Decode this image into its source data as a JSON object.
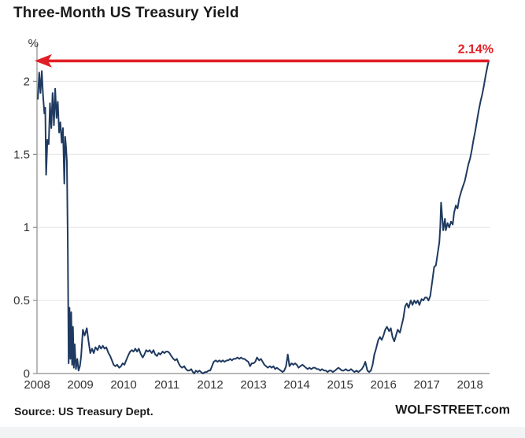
{
  "header": {
    "title": "Three-Month US Treasury Yield"
  },
  "footer": {
    "source": "Source: US Treasury Dept.",
    "brand": "WOLFSTREET.com"
  },
  "chart_data": {
    "type": "line",
    "title": "Three-Month US Treasury Yield",
    "xlabel": "",
    "ylabel": "%",
    "xlim": [
      2008,
      2018.45
    ],
    "ylim": [
      0,
      2.18
    ],
    "grid": "horizontal",
    "legend": "none",
    "x_ticks": [
      2008,
      2009,
      2010,
      2011,
      2012,
      2013,
      2014,
      2015,
      2016,
      2017,
      2018
    ],
    "y_ticks": [
      {
        "v": 0,
        "label": "0"
      },
      {
        "v": 0.5,
        "label": "0.5"
      },
      {
        "v": 1,
        "label": "1"
      },
      {
        "v": 1.5,
        "label": "1.5"
      },
      {
        "v": 2,
        "label": "2"
      }
    ],
    "colors": {
      "line": "#1f3a60",
      "annotation": "#e11e25",
      "grid": "#e4e4e4",
      "axis": "#8c8c8c",
      "tick_text": "#333333"
    },
    "annotation": {
      "text": "2.14%",
      "value": 2.14,
      "style": "horizontal-arrow-to-y-axis"
    },
    "series": [
      {
        "name": "3-Month US Treasury Yield (%)",
        "points": [
          [
            2008.02,
            1.88
          ],
          [
            2008.05,
            2.06
          ],
          [
            2008.08,
            1.92
          ],
          [
            2008.11,
            2.07
          ],
          [
            2008.14,
            1.9
          ],
          [
            2008.17,
            1.78
          ],
          [
            2008.19,
            1.82
          ],
          [
            2008.21,
            1.36
          ],
          [
            2008.24,
            1.6
          ],
          [
            2008.27,
            1.57
          ],
          [
            2008.3,
            1.85
          ],
          [
            2008.33,
            1.68
          ],
          [
            2008.36,
            1.92
          ],
          [
            2008.39,
            1.7
          ],
          [
            2008.42,
            1.95
          ],
          [
            2008.45,
            1.75
          ],
          [
            2008.48,
            1.86
          ],
          [
            2008.51,
            1.65
          ],
          [
            2008.54,
            1.72
          ],
          [
            2008.57,
            1.58
          ],
          [
            2008.6,
            1.68
          ],
          [
            2008.63,
            1.3
          ],
          [
            2008.65,
            1.62
          ],
          [
            2008.67,
            1.55
          ],
          [
            2008.69,
            1.45
          ],
          [
            2008.71,
            0.9
          ],
          [
            2008.73,
            0.07
          ],
          [
            2008.75,
            0.45
          ],
          [
            2008.77,
            0.1
          ],
          [
            2008.79,
            0.42
          ],
          [
            2008.81,
            0.06
          ],
          [
            2008.83,
            0.32
          ],
          [
            2008.85,
            0.04
          ],
          [
            2008.87,
            0.2
          ],
          [
            2008.9,
            0.03
          ],
          [
            2008.93,
            0.1
          ],
          [
            2008.96,
            0.02
          ],
          [
            2008.99,
            0.05
          ],
          [
            2009.02,
            0.12
          ],
          [
            2009.06,
            0.3
          ],
          [
            2009.1,
            0.26
          ],
          [
            2009.15,
            0.31
          ],
          [
            2009.19,
            0.22
          ],
          [
            2009.23,
            0.14
          ],
          [
            2009.27,
            0.17
          ],
          [
            2009.31,
            0.14
          ],
          [
            2009.35,
            0.18
          ],
          [
            2009.4,
            0.16
          ],
          [
            2009.44,
            0.19
          ],
          [
            2009.48,
            0.17
          ],
          [
            2009.52,
            0.19
          ],
          [
            2009.56,
            0.17
          ],
          [
            2009.6,
            0.18
          ],
          [
            2009.65,
            0.14
          ],
          [
            2009.69,
            0.12
          ],
          [
            2009.73,
            0.09
          ],
          [
            2009.77,
            0.06
          ],
          [
            2009.81,
            0.05
          ],
          [
            2009.85,
            0.06
          ],
          [
            2009.9,
            0.04
          ],
          [
            2009.94,
            0.05
          ],
          [
            2009.98,
            0.07
          ],
          [
            2010.02,
            0.06
          ],
          [
            2010.06,
            0.09
          ],
          [
            2010.1,
            0.12
          ],
          [
            2010.15,
            0.15
          ],
          [
            2010.19,
            0.16
          ],
          [
            2010.23,
            0.15
          ],
          [
            2010.27,
            0.17
          ],
          [
            2010.31,
            0.15
          ],
          [
            2010.35,
            0.17
          ],
          [
            2010.4,
            0.13
          ],
          [
            2010.44,
            0.11
          ],
          [
            2010.48,
            0.13
          ],
          [
            2010.52,
            0.16
          ],
          [
            2010.56,
            0.15
          ],
          [
            2010.6,
            0.16
          ],
          [
            2010.65,
            0.14
          ],
          [
            2010.69,
            0.16
          ],
          [
            2010.73,
            0.13
          ],
          [
            2010.77,
            0.12
          ],
          [
            2010.81,
            0.14
          ],
          [
            2010.85,
            0.13
          ],
          [
            2010.9,
            0.15
          ],
          [
            2010.94,
            0.14
          ],
          [
            2010.98,
            0.15
          ],
          [
            2011.02,
            0.15
          ],
          [
            2011.06,
            0.14
          ],
          [
            2011.1,
            0.12
          ],
          [
            2011.15,
            0.1
          ],
          [
            2011.19,
            0.09
          ],
          [
            2011.23,
            0.1
          ],
          [
            2011.27,
            0.07
          ],
          [
            2011.31,
            0.05
          ],
          [
            2011.35,
            0.04
          ],
          [
            2011.4,
            0.05
          ],
          [
            2011.44,
            0.03
          ],
          [
            2011.48,
            0.02
          ],
          [
            2011.52,
            0.02
          ],
          [
            2011.56,
            0.03
          ],
          [
            2011.6,
            0.01
          ],
          [
            2011.63,
            0.0
          ],
          [
            2011.67,
            0.02
          ],
          [
            2011.71,
            0.01
          ],
          [
            2011.75,
            0.02
          ],
          [
            2011.79,
            0.01
          ],
          [
            2011.83,
            0.0
          ],
          [
            2011.88,
            0.01
          ],
          [
            2011.92,
            0.01
          ],
          [
            2011.96,
            0.02
          ],
          [
            2012.0,
            0.02
          ],
          [
            2012.04,
            0.05
          ],
          [
            2012.08,
            0.08
          ],
          [
            2012.13,
            0.09
          ],
          [
            2012.17,
            0.08
          ],
          [
            2012.21,
            0.09
          ],
          [
            2012.25,
            0.08
          ],
          [
            2012.29,
            0.09
          ],
          [
            2012.33,
            0.08
          ],
          [
            2012.38,
            0.09
          ],
          [
            2012.42,
            0.09
          ],
          [
            2012.46,
            0.1
          ],
          [
            2012.5,
            0.09
          ],
          [
            2012.54,
            0.1
          ],
          [
            2012.58,
            0.1
          ],
          [
            2012.63,
            0.11
          ],
          [
            2012.67,
            0.1
          ],
          [
            2012.71,
            0.11
          ],
          [
            2012.75,
            0.1
          ],
          [
            2012.79,
            0.1
          ],
          [
            2012.83,
            0.09
          ],
          [
            2012.88,
            0.08
          ],
          [
            2012.92,
            0.05
          ],
          [
            2012.96,
            0.07
          ],
          [
            2013.0,
            0.07
          ],
          [
            2013.04,
            0.08
          ],
          [
            2013.08,
            0.11
          ],
          [
            2013.13,
            0.09
          ],
          [
            2013.17,
            0.1
          ],
          [
            2013.21,
            0.08
          ],
          [
            2013.25,
            0.06
          ],
          [
            2013.29,
            0.05
          ],
          [
            2013.33,
            0.04
          ],
          [
            2013.38,
            0.05
          ],
          [
            2013.42,
            0.04
          ],
          [
            2013.46,
            0.05
          ],
          [
            2013.5,
            0.03
          ],
          [
            2013.54,
            0.04
          ],
          [
            2013.58,
            0.03
          ],
          [
            2013.63,
            0.02
          ],
          [
            2013.67,
            0.01
          ],
          [
            2013.71,
            0.02
          ],
          [
            2013.75,
            0.05
          ],
          [
            2013.79,
            0.13
          ],
          [
            2013.83,
            0.05
          ],
          [
            2013.88,
            0.07
          ],
          [
            2013.92,
            0.06
          ],
          [
            2013.96,
            0.07
          ],
          [
            2014.0,
            0.06
          ],
          [
            2014.04,
            0.04
          ],
          [
            2014.08,
            0.05
          ],
          [
            2014.13,
            0.06
          ],
          [
            2014.17,
            0.05
          ],
          [
            2014.21,
            0.04
          ],
          [
            2014.25,
            0.03
          ],
          [
            2014.29,
            0.04
          ],
          [
            2014.33,
            0.03
          ],
          [
            2014.38,
            0.04
          ],
          [
            2014.42,
            0.04
          ],
          [
            2014.46,
            0.03
          ],
          [
            2014.5,
            0.03
          ],
          [
            2014.54,
            0.02
          ],
          [
            2014.58,
            0.03
          ],
          [
            2014.63,
            0.02
          ],
          [
            2014.67,
            0.02
          ],
          [
            2014.71,
            0.01
          ],
          [
            2014.75,
            0.02
          ],
          [
            2014.79,
            0.02
          ],
          [
            2014.83,
            0.01
          ],
          [
            2014.88,
            0.02
          ],
          [
            2014.92,
            0.03
          ],
          [
            2014.96,
            0.04
          ],
          [
            2015.0,
            0.03
          ],
          [
            2015.04,
            0.02
          ],
          [
            2015.08,
            0.02
          ],
          [
            2015.13,
            0.03
          ],
          [
            2015.17,
            0.02
          ],
          [
            2015.21,
            0.02
          ],
          [
            2015.25,
            0.03
          ],
          [
            2015.29,
            0.02
          ],
          [
            2015.33,
            0.01
          ],
          [
            2015.38,
            0.02
          ],
          [
            2015.42,
            0.01
          ],
          [
            2015.46,
            0.02
          ],
          [
            2015.5,
            0.03
          ],
          [
            2015.54,
            0.05
          ],
          [
            2015.58,
            0.08
          ],
          [
            2015.63,
            0.02
          ],
          [
            2015.67,
            0.01
          ],
          [
            2015.71,
            0.02
          ],
          [
            2015.75,
            0.06
          ],
          [
            2015.79,
            0.13
          ],
          [
            2015.83,
            0.17
          ],
          [
            2015.88,
            0.23
          ],
          [
            2015.92,
            0.25
          ],
          [
            2015.96,
            0.23
          ],
          [
            2016.0,
            0.26
          ],
          [
            2016.04,
            0.3
          ],
          [
            2016.08,
            0.32
          ],
          [
            2016.13,
            0.29
          ],
          [
            2016.17,
            0.31
          ],
          [
            2016.21,
            0.25
          ],
          [
            2016.25,
            0.22
          ],
          [
            2016.29,
            0.26
          ],
          [
            2016.33,
            0.3
          ],
          [
            2016.38,
            0.28
          ],
          [
            2016.42,
            0.33
          ],
          [
            2016.46,
            0.38
          ],
          [
            2016.5,
            0.46
          ],
          [
            2016.54,
            0.48
          ],
          [
            2016.58,
            0.45
          ],
          [
            2016.63,
            0.5
          ],
          [
            2016.67,
            0.47
          ],
          [
            2016.71,
            0.5
          ],
          [
            2016.75,
            0.48
          ],
          [
            2016.79,
            0.5
          ],
          [
            2016.83,
            0.47
          ],
          [
            2016.88,
            0.51
          ],
          [
            2016.92,
            0.5
          ],
          [
            2016.96,
            0.52
          ],
          [
            2017.0,
            0.52
          ],
          [
            2017.04,
            0.5
          ],
          [
            2017.08,
            0.53
          ],
          [
            2017.13,
            0.64
          ],
          [
            2017.17,
            0.73
          ],
          [
            2017.21,
            0.74
          ],
          [
            2017.25,
            0.82
          ],
          [
            2017.29,
            0.9
          ],
          [
            2017.31,
            1.0
          ],
          [
            2017.33,
            1.17
          ],
          [
            2017.38,
            0.98
          ],
          [
            2017.42,
            1.06
          ],
          [
            2017.44,
            0.98
          ],
          [
            2017.48,
            1.03
          ],
          [
            2017.52,
            1.0
          ],
          [
            2017.56,
            1.04
          ],
          [
            2017.6,
            1.02
          ],
          [
            2017.63,
            1.1
          ],
          [
            2017.67,
            1.15
          ],
          [
            2017.71,
            1.13
          ],
          [
            2017.75,
            1.2
          ],
          [
            2017.81,
            1.26
          ],
          [
            2017.88,
            1.32
          ],
          [
            2017.96,
            1.43
          ],
          [
            2018.0,
            1.47
          ],
          [
            2018.04,
            1.53
          ],
          [
            2018.08,
            1.6
          ],
          [
            2018.12,
            1.66
          ],
          [
            2018.16,
            1.73
          ],
          [
            2018.2,
            1.8
          ],
          [
            2018.24,
            1.86
          ],
          [
            2018.28,
            1.91
          ],
          [
            2018.32,
            1.97
          ],
          [
            2018.36,
            2.04
          ],
          [
            2018.4,
            2.1
          ],
          [
            2018.43,
            2.14
          ]
        ]
      }
    ]
  }
}
